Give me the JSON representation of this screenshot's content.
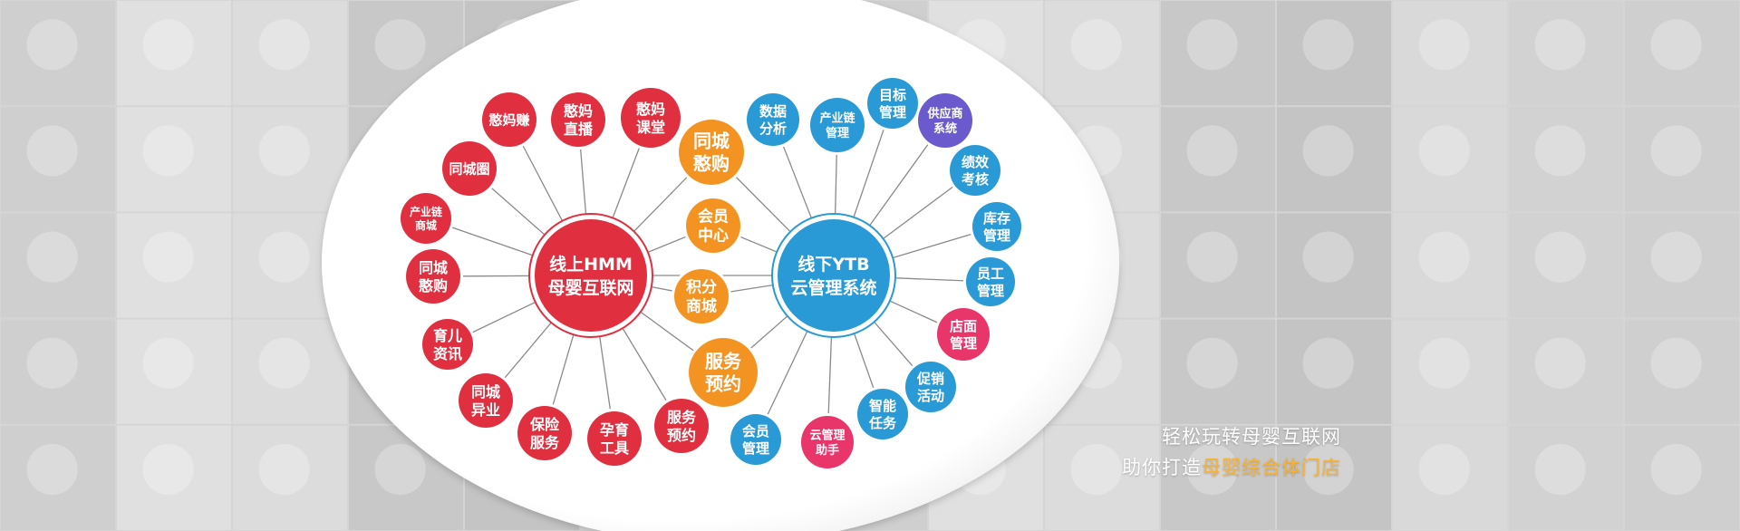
{
  "colors": {
    "red": "#e03040",
    "orange": "#f39422",
    "blue": "#2a9ad6",
    "purple": "#6a5acd",
    "pink": "#e8356a",
    "line": "#8a8a8a",
    "slogan_highlight": "#f5b33a"
  },
  "hubs": {
    "left": {
      "lines": [
        "线上HMM",
        "母婴互联网"
      ],
      "color": "red"
    },
    "right": {
      "lines": [
        "线下YTB",
        "云管理系统"
      ],
      "color": "blue"
    }
  },
  "left_nodes": [
    {
      "lines": [
        "憨妈赚"
      ],
      "color": "red"
    },
    {
      "lines": [
        "憨妈",
        "直播"
      ],
      "color": "red"
    },
    {
      "lines": [
        "憨妈",
        "课堂"
      ],
      "color": "red"
    },
    {
      "lines": [
        "同城圈"
      ],
      "color": "red"
    },
    {
      "lines": [
        "产业链",
        "商城"
      ],
      "color": "red"
    },
    {
      "lines": [
        "同城",
        "憨购"
      ],
      "color": "red"
    },
    {
      "lines": [
        "育儿",
        "资讯"
      ],
      "color": "red"
    },
    {
      "lines": [
        "同城",
        "异业"
      ],
      "color": "red"
    },
    {
      "lines": [
        "保险",
        "服务"
      ],
      "color": "red"
    },
    {
      "lines": [
        "孕育",
        "工具"
      ],
      "color": "red"
    },
    {
      "lines": [
        "服务",
        "预约"
      ],
      "color": "red"
    }
  ],
  "shared_nodes": [
    {
      "lines": [
        "同城",
        "憨购"
      ],
      "color": "orange"
    },
    {
      "lines": [
        "会员",
        "中心"
      ],
      "color": "orange"
    },
    {
      "lines": [
        "积分",
        "商城"
      ],
      "color": "orange"
    },
    {
      "lines": [
        "服务",
        "预约"
      ],
      "color": "orange"
    }
  ],
  "right_nodes": [
    {
      "lines": [
        "数据",
        "分析"
      ],
      "color": "blue"
    },
    {
      "lines": [
        "产业链",
        "管理"
      ],
      "color": "blue"
    },
    {
      "lines": [
        "目标",
        "管理"
      ],
      "color": "blue"
    },
    {
      "lines": [
        "供应商",
        "系统"
      ],
      "color": "purple"
    },
    {
      "lines": [
        "绩效",
        "考核"
      ],
      "color": "blue"
    },
    {
      "lines": [
        "库存",
        "管理"
      ],
      "color": "blue"
    },
    {
      "lines": [
        "员工",
        "管理"
      ],
      "color": "blue"
    },
    {
      "lines": [
        "店面",
        "管理"
      ],
      "color": "pink"
    },
    {
      "lines": [
        "促销",
        "活动"
      ],
      "color": "blue"
    },
    {
      "lines": [
        "智能",
        "任务"
      ],
      "color": "blue"
    },
    {
      "lines": [
        "云管理",
        "助手"
      ],
      "color": "pink"
    },
    {
      "lines": [
        "会员",
        "管理"
      ],
      "color": "blue"
    }
  ],
  "slogan": {
    "line1": "轻松玩转母婴互联网",
    "line2_prefix": "助你打造",
    "line2_highlight": "母婴综合体门店"
  }
}
